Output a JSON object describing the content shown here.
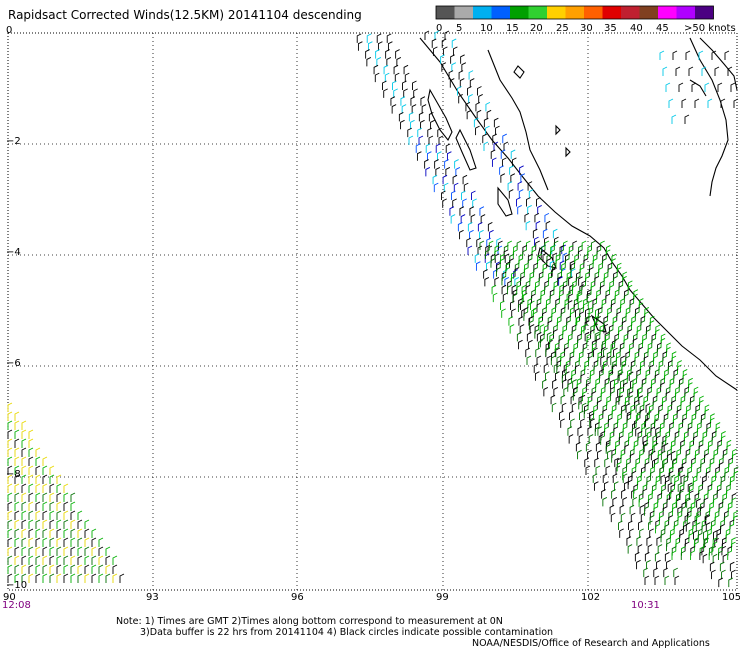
{
  "title": "Rapidsact Corrected Winds(12.5KM) 20141104 descending",
  "colorbar": {
    "colors": [
      "#555555",
      "#aaaaaa",
      "#00b0f0",
      "#0060ff",
      "#00a000",
      "#30d030",
      "#ffd000",
      "#ffa000",
      "#ff6000",
      "#e00000",
      "#c02030",
      "#804020",
      "#ff00ff",
      "#b000ff",
      "#4b0082"
    ],
    "labels": [
      "0",
      "5",
      "10",
      "15",
      "20",
      "25",
      "30",
      "35",
      "40",
      "45",
      ">50 knots"
    ]
  },
  "axes": {
    "y_labels": [
      "0",
      "−2",
      "−4",
      "−6",
      "−8",
      "−10"
    ],
    "x_labels": [
      "90",
      "93",
      "96",
      "99",
      "102",
      "105"
    ]
  },
  "times": {
    "left": "12:08",
    "right": "10:31"
  },
  "notes": {
    "line1": "Note: 1) Times are GMT 2)Times along bottom correspond to measurement at 0N",
    "line2": "3)Data buffer is 22 hrs from 20141104 4) Black circles indicate possible contamination",
    "line3": "NOAA/NESDIS/Office of Research and Applications"
  },
  "legend_colors": {
    "calm": "#000000",
    "light_blue": "#00c8e8",
    "blue": "#0050ff",
    "dark_blue": "#0000c0",
    "green": "#00b000",
    "dark_green": "#007000",
    "yellow": "#e8d800"
  }
}
